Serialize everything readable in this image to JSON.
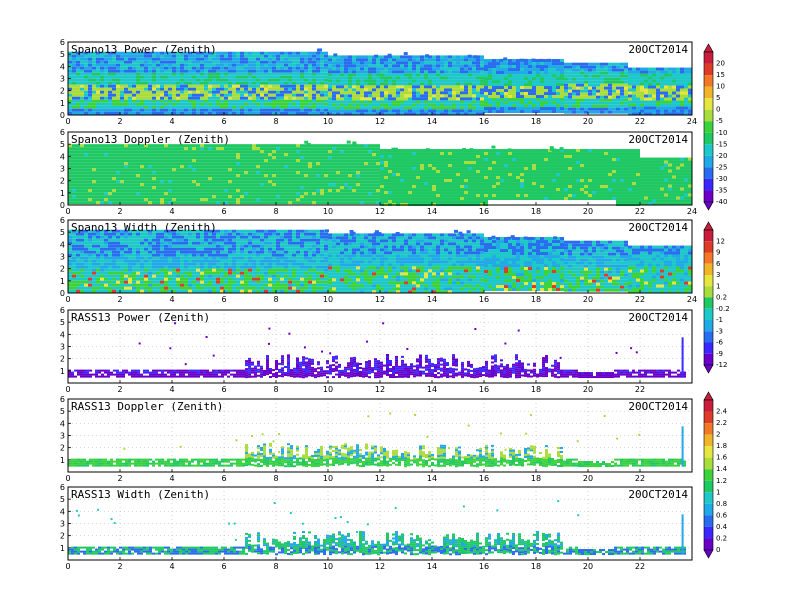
{
  "chart_data": [
    {
      "type": "heatmap",
      "title": "Spano13 Power (Zenith)",
      "date": "20OCT2014",
      "xlim": [
        0,
        24
      ],
      "ylim": [
        0,
        6
      ],
      "xticks": [
        "0",
        "2",
        "4",
        "6",
        "8",
        "10",
        "12",
        "14",
        "16",
        "18",
        "20",
        "22",
        "24"
      ],
      "yticks": [
        "0",
        "1",
        "2",
        "3",
        "4",
        "5",
        "6"
      ],
      "style": "power"
    },
    {
      "type": "heatmap",
      "title": "Spano13 Doppler (Zenith)",
      "date": "20OCT2014",
      "xlim": [
        0,
        24
      ],
      "ylim": [
        0,
        6
      ],
      "xticks": [
        "0",
        "2",
        "4",
        "6",
        "8",
        "10",
        "12",
        "14",
        "16",
        "18",
        "20",
        "22",
        "24"
      ],
      "yticks": [
        "0",
        "1",
        "2",
        "3",
        "4",
        "5",
        "6"
      ],
      "style": "doppler"
    },
    {
      "type": "heatmap",
      "title": "Spano13 Width (Zenith)",
      "date": "20OCT2014",
      "xlim": [
        0,
        24
      ],
      "ylim": [
        0,
        6
      ],
      "xticks": [
        "0",
        "2",
        "4",
        "6",
        "8",
        "10",
        "12",
        "14",
        "16",
        "18",
        "20",
        "22",
        "24"
      ],
      "yticks": [
        "0",
        "1",
        "2",
        "3",
        "4",
        "5",
        "6"
      ],
      "style": "width"
    },
    {
      "type": "heatmap",
      "title": "RASS13 Power (Zenith)",
      "date": "20OCT2014",
      "xlim": [
        0,
        24
      ],
      "ylim": [
        0,
        6
      ],
      "xticks": [
        "0",
        "2",
        "4",
        "6",
        "8",
        "10",
        "12",
        "14",
        "16",
        "18",
        "20",
        "22"
      ],
      "yticks": [
        "1",
        "2",
        "3",
        "4",
        "5",
        "6"
      ],
      "style": "rpower"
    },
    {
      "type": "heatmap",
      "title": "RASS13 Doppler (Zenith)",
      "date": "20OCT2014",
      "xlim": [
        0,
        24
      ],
      "ylim": [
        0,
        6
      ],
      "xticks": [
        "0",
        "2",
        "4",
        "6",
        "8",
        "10",
        "12",
        "14",
        "16",
        "18",
        "20",
        "22"
      ],
      "yticks": [
        "1",
        "2",
        "3",
        "4",
        "5",
        "6"
      ],
      "style": "rdoppler"
    },
    {
      "type": "heatmap",
      "title": "RASS13 Width (Zenith)",
      "date": "20OCT2014",
      "xlim": [
        0,
        24
      ],
      "ylim": [
        0,
        6
      ],
      "xticks": [
        "0",
        "2",
        "4",
        "6",
        "8",
        "10",
        "12",
        "14",
        "16",
        "18",
        "20",
        "22"
      ],
      "yticks": [
        "1",
        "2",
        "3",
        "4",
        "5",
        "6"
      ],
      "style": "rwidth"
    }
  ],
  "colorbars": [
    {
      "labels": [
        "20",
        "15",
        "10",
        "5",
        "0",
        "-5",
        "-10",
        "-15",
        "-20",
        "-25",
        "-30",
        "-35",
        "-40"
      ]
    },
    {
      "labels": [
        "12",
        "9",
        "6",
        "3",
        "1",
        "0.2",
        "-0.2",
        "-1",
        "-3",
        "-6",
        "-9",
        "-12"
      ]
    },
    {
      "labels": [
        "2.4",
        "2.2",
        "2",
        "1.8",
        "1.6",
        "1.4",
        "1.2",
        "1",
        "0.8",
        "0.6",
        "0.4",
        "0.2",
        "0"
      ]
    }
  ],
  "colors": {
    "palette": [
      "#6a00c8",
      "#3c28ff",
      "#2a6cf0",
      "#21a8e6",
      "#1ec8c8",
      "#20c864",
      "#3cd23c",
      "#aadc3c",
      "#e6e640",
      "#f0b428",
      "#f07828",
      "#dc3c28",
      "#c81e3c"
    ]
  }
}
